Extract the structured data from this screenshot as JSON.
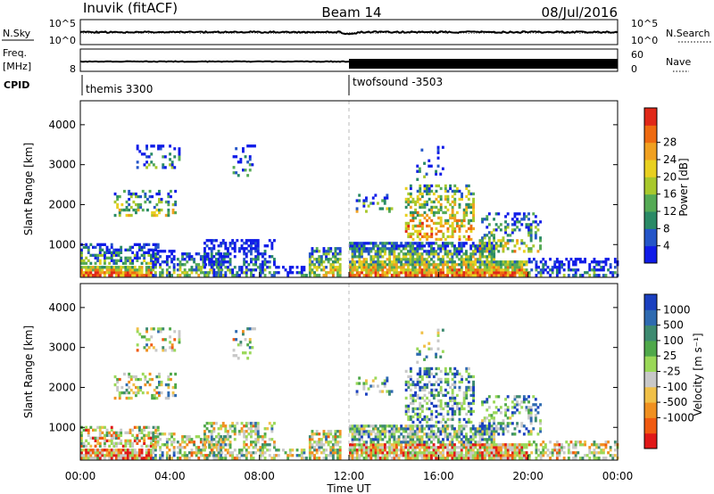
{
  "header": {
    "station": "Inuvik (fitACF)",
    "beam": "Beam 14",
    "date": "08/Jul/2016"
  },
  "noise_panel": {
    "left_label": "N.Sky",
    "right_label": "N.Search",
    "left_ticks": [
      "10^5",
      "10^0"
    ],
    "right_ticks": [
      "10^5",
      "10^0"
    ]
  },
  "freq_panel": {
    "left_label": "Freq.",
    "left_unit": "[MHz]",
    "right_label": "Nave",
    "left_ticks": [
      "8"
    ],
    "right_ticks": [
      "60",
      "0"
    ]
  },
  "cpid": {
    "label": "CPID",
    "segments": [
      {
        "name": "themis 3300",
        "start_hour": 0
      },
      {
        "name": "twofsound -3503",
        "start_hour": 12
      }
    ]
  },
  "chart_data": [
    {
      "type": "heatmap",
      "name": "power",
      "xlabel": "",
      "ylabel": "Slant Range [km]",
      "x_range_hours": [
        0,
        24
      ],
      "y_range_km": [
        180,
        4600
      ],
      "yticks": [
        "1000",
        "2000",
        "3000",
        "4000"
      ],
      "colorbar_label": "Power [dB]",
      "colorbar_ticks": [
        "4",
        "8",
        "12",
        "16",
        "20",
        "24",
        "28"
      ],
      "colorbar_colors": [
        "#0f1be8",
        "#2455c8",
        "#2a8a66",
        "#55aa55",
        "#a8c82c",
        "#e8d020",
        "#f0a020",
        "#ee6a10",
        "#e02818"
      ]
    },
    {
      "type": "heatmap",
      "name": "velocity",
      "xlabel": "Time UT",
      "ylabel": "Slant Range [km]",
      "x_range_hours": [
        0,
        24
      ],
      "y_range_km": [
        180,
        4600
      ],
      "xticks": [
        "00:00",
        "04:00",
        "08:00",
        "12:00",
        "16:00",
        "20:00",
        "00:00"
      ],
      "yticks": [
        "1000",
        "2000",
        "3000",
        "4000"
      ],
      "colorbar_label": "Velocity [m s⁻¹]",
      "colorbar_ticks": [
        "1000",
        "500",
        "100",
        "25",
        "-25",
        "-100",
        "-500",
        "-1000"
      ],
      "colorbar_colors": [
        "#1a3fbf",
        "#2e6ab0",
        "#3d8a70",
        "#4fa84a",
        "#9ad858",
        "#c8c8c8",
        "#f0c048",
        "#f09020",
        "#f05a10",
        "#e01818"
      ]
    }
  ],
  "scatter_regions": [
    {
      "t0": 0.0,
      "t1": 3.2,
      "r0": 200,
      "r1": 500,
      "density": 0.9,
      "pbias": 0.85,
      "vbias": -0.4
    },
    {
      "t0": 0.0,
      "t1": 3.5,
      "r0": 500,
      "r1": 1050,
      "density": 0.55,
      "pbias": 0.4,
      "vbias": -0.2
    },
    {
      "t0": 3.2,
      "t1": 4.2,
      "r0": 200,
      "r1": 900,
      "density": 0.6,
      "pbias": 0.35,
      "vbias": 0.1
    },
    {
      "t0": 1.5,
      "t1": 4.3,
      "r0": 1700,
      "r1": 2400,
      "density": 0.3,
      "pbias": 0.55,
      "vbias": 0.05
    },
    {
      "t0": 2.5,
      "t1": 4.5,
      "r0": 2900,
      "r1": 3500,
      "density": 0.2,
      "pbias": 0.3,
      "vbias": 0.0
    },
    {
      "t0": 4.3,
      "t1": 6.5,
      "r0": 200,
      "r1": 800,
      "density": 0.55,
      "pbias": 0.45,
      "vbias": -0.1
    },
    {
      "t0": 5.5,
      "t1": 8.7,
      "r0": 200,
      "r1": 1150,
      "density": 0.5,
      "pbias": 0.3,
      "vbias": 0.0
    },
    {
      "t0": 6.8,
      "t1": 7.8,
      "r0": 2700,
      "r1": 3500,
      "density": 0.15,
      "pbias": 0.3,
      "vbias": 0.05
    },
    {
      "t0": 8.7,
      "t1": 10.2,
      "r0": 200,
      "r1": 500,
      "density": 0.3,
      "pbias": 0.2,
      "vbias": 0.0
    },
    {
      "t0": 10.2,
      "t1": 11.6,
      "r0": 200,
      "r1": 950,
      "density": 0.6,
      "pbias": 0.6,
      "vbias": 0.0
    },
    {
      "t0": 12.0,
      "t1": 20.0,
      "r0": 200,
      "r1": 600,
      "density": 0.9,
      "pbias": 0.8,
      "vbias": -0.35
    },
    {
      "t0": 12.0,
      "t1": 18.5,
      "r0": 600,
      "r1": 1050,
      "density": 0.75,
      "pbias": 0.5,
      "vbias": 0.25
    },
    {
      "t0": 14.5,
      "t1": 17.6,
      "r0": 1100,
      "r1": 2500,
      "density": 0.45,
      "pbias": 0.75,
      "vbias": 0.45
    },
    {
      "t0": 12.2,
      "t1": 14.0,
      "r0": 1800,
      "r1": 2300,
      "density": 0.3,
      "pbias": 0.45,
      "vbias": 0.3
    },
    {
      "t0": 17.8,
      "t1": 20.6,
      "r0": 800,
      "r1": 1800,
      "density": 0.35,
      "pbias": 0.55,
      "vbias": 0.35
    },
    {
      "t0": 20.0,
      "t1": 24.0,
      "r0": 200,
      "r1": 700,
      "density": 0.45,
      "pbias": 0.25,
      "vbias": -0.1
    },
    {
      "t0": 15.0,
      "t1": 16.5,
      "r0": 2600,
      "r1": 3500,
      "density": 0.08,
      "pbias": 0.3,
      "vbias": 0.2
    }
  ]
}
